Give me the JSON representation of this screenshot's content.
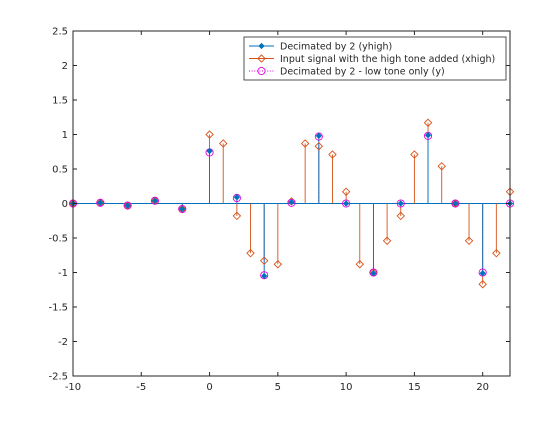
{
  "chart_data": {
    "type": "stem",
    "xlim": [
      -10,
      22
    ],
    "ylim": [
      -2.5,
      2.5
    ],
    "x_ticks": [
      -10,
      -5,
      0,
      5,
      10,
      15,
      20
    ],
    "y_ticks": [
      -2.5,
      -2,
      -1.5,
      -1,
      -0.5,
      0,
      0.5,
      1,
      1.5,
      2,
      2.5
    ],
    "x_tick_labels": [
      "-10",
      "-5",
      "0",
      "5",
      "10",
      "15",
      "20"
    ],
    "y_tick_labels": [
      "-2.5",
      "-2",
      "-1.5",
      "-1",
      "-0.5",
      "0",
      "0.5",
      "1",
      "1.5",
      "2",
      "2.5"
    ],
    "grid": false,
    "legend_position": "top-right",
    "series": [
      {
        "name": "Decimated by 2 (yhigh)",
        "color": "#0072BD",
        "marker": "filled-diamond",
        "x": [
          -10,
          -8,
          -6,
          -4,
          -2,
          0,
          2,
          4,
          6,
          8,
          10,
          12,
          14,
          16,
          18,
          20,
          22
        ],
        "y": [
          0.0,
          0.01,
          -0.03,
          0.04,
          -0.08,
          0.76,
          0.09,
          -1.05,
          0.02,
          0.98,
          0.0,
          -1.01,
          0.0,
          0.99,
          0.0,
          -1.01,
          0.0
        ]
      },
      {
        "name": "Input signal with the high tone added (xhigh)",
        "color": "#D95319",
        "marker": "open-diamond",
        "x": [
          -10,
          -8,
          -6,
          -4,
          -2,
          0,
          1,
          2,
          3,
          4,
          5,
          6,
          7,
          8,
          9,
          10,
          11,
          12,
          13,
          14,
          15,
          16,
          17,
          18,
          19,
          20,
          21,
          22
        ],
        "y": [
          0.0,
          0.01,
          -0.03,
          0.04,
          -0.08,
          1.0,
          0.87,
          -0.18,
          -0.72,
          -0.83,
          -0.88,
          0.03,
          0.87,
          0.83,
          0.71,
          0.17,
          -0.88,
          -1.0,
          -0.54,
          -0.18,
          0.71,
          1.17,
          0.54,
          0.0,
          -0.54,
          -1.17,
          -0.72,
          0.17
        ]
      },
      {
        "name": "Decimated by 2 - low tone only (y)",
        "color": "#E000E0",
        "marker": "open-circle",
        "line_style": "dotted",
        "x": [
          -10,
          -8,
          -6,
          -4,
          -2,
          0,
          2,
          4,
          6,
          8,
          10,
          12,
          14,
          16,
          18,
          20,
          22
        ],
        "y": [
          0.0,
          0.01,
          -0.03,
          0.04,
          -0.08,
          0.74,
          0.08,
          -1.04,
          0.01,
          0.97,
          0.0,
          -1.0,
          0.0,
          0.98,
          0.0,
          -1.0,
          0.0
        ]
      }
    ]
  }
}
